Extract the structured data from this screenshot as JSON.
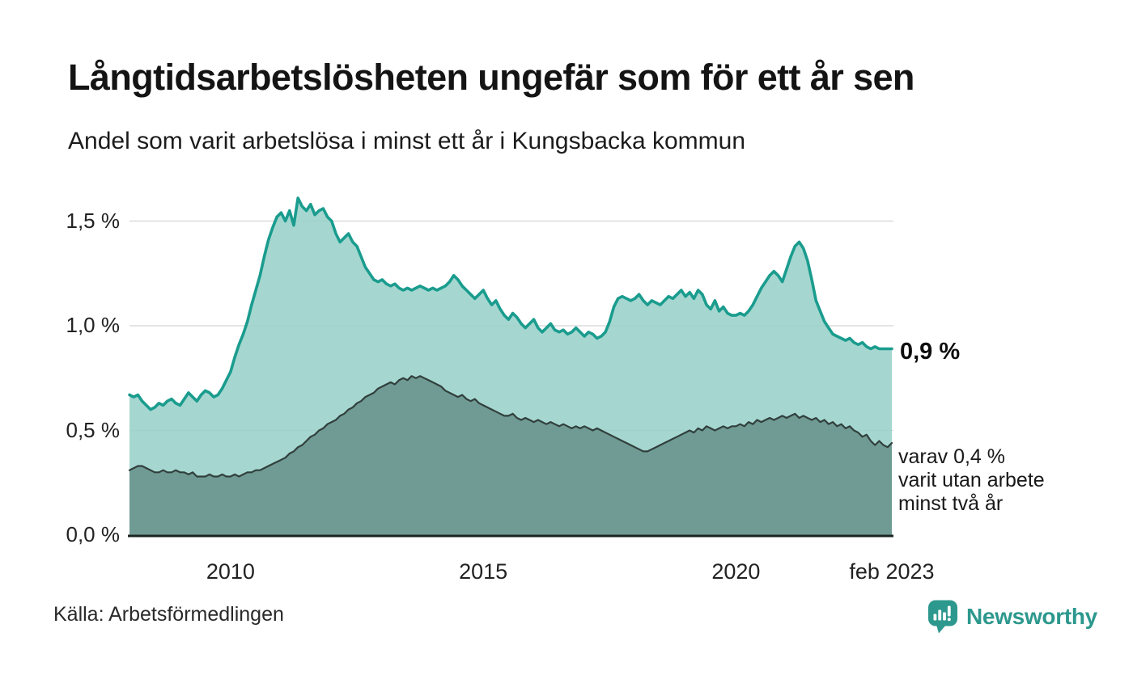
{
  "header": {
    "title": "Långtidsarbetslösheten ungefär som för ett år sen",
    "subtitle": "Andel som varit arbetslösa i minst ett år i Kungsbacka kommun"
  },
  "annotations": {
    "primary": "0,9 %",
    "secondary_line1": "varav 0,4 %",
    "secondary_line2": "varit utan arbete",
    "secondary_line3": "minst två år"
  },
  "footer": {
    "source": "Källa: Arbetsförmedlingen"
  },
  "logo": {
    "label": "Newsworthy",
    "color": "#2d988d",
    "icon": "bar-chart-speech-bubble"
  },
  "colors": {
    "line_total": "#1a9c8e",
    "fill_total": "#98d1ca",
    "line_two_years": "#313f3c",
    "fill_two_years": "#6c9892",
    "gridline": "#dbdbdb",
    "axis": "#1b2422"
  },
  "chart_data": {
    "type": "area",
    "title": "Långtidsarbetslösheten ungefär som för ett år sen",
    "subtitle": "Andel som varit arbetslösa i minst ett år i Kungsbacka kommun",
    "xlabel": "",
    "ylabel": "",
    "unit": "%",
    "grid": true,
    "x_start_year": 2008.0,
    "x_step_years": 0.0833333,
    "ylim": [
      0,
      1.65
    ],
    "x_ticks": [
      {
        "year": 2010,
        "label": "2010"
      },
      {
        "year": 2015,
        "label": "2015"
      },
      {
        "year": 2020,
        "label": "2020"
      },
      {
        "year": 2023.083,
        "label": "feb 2023"
      }
    ],
    "y_ticks": [
      {
        "value": 0,
        "label": "0,0 %"
      },
      {
        "value": 0.5,
        "label": "0,5 %"
      },
      {
        "value": 1.0,
        "label": "1,0 %"
      },
      {
        "value": 1.5,
        "label": "1,5 %"
      }
    ],
    "series": [
      {
        "id": "arbetslosa-minst-ett-ar",
        "latest_value_label": "0,9 %",
        "line_color": "#1a9c8e",
        "fill_color": "#98d1ca",
        "line_width": 3.6,
        "fill_opacity": 0.88,
        "values": [
          0.67,
          0.66,
          0.67,
          0.64,
          0.62,
          0.6,
          0.61,
          0.63,
          0.62,
          0.64,
          0.65,
          0.63,
          0.62,
          0.65,
          0.68,
          0.66,
          0.64,
          0.67,
          0.69,
          0.68,
          0.66,
          0.67,
          0.7,
          0.74,
          0.78,
          0.85,
          0.91,
          0.96,
          1.02,
          1.1,
          1.17,
          1.24,
          1.33,
          1.41,
          1.47,
          1.52,
          1.54,
          1.5,
          1.55,
          1.48,
          1.61,
          1.57,
          1.55,
          1.58,
          1.53,
          1.55,
          1.56,
          1.52,
          1.5,
          1.44,
          1.4,
          1.42,
          1.44,
          1.4,
          1.38,
          1.33,
          1.28,
          1.25,
          1.22,
          1.21,
          1.22,
          1.2,
          1.19,
          1.2,
          1.18,
          1.17,
          1.18,
          1.17,
          1.18,
          1.19,
          1.18,
          1.17,
          1.18,
          1.17,
          1.18,
          1.19,
          1.21,
          1.24,
          1.22,
          1.19,
          1.17,
          1.15,
          1.13,
          1.15,
          1.17,
          1.13,
          1.1,
          1.12,
          1.08,
          1.05,
          1.03,
          1.06,
          1.04,
          1.01,
          0.99,
          1.01,
          1.03,
          0.99,
          0.97,
          0.99,
          1.01,
          0.98,
          0.97,
          0.98,
          0.96,
          0.97,
          0.99,
          0.97,
          0.95,
          0.97,
          0.96,
          0.94,
          0.95,
          0.97,
          1.02,
          1.09,
          1.13,
          1.14,
          1.13,
          1.12,
          1.13,
          1.15,
          1.12,
          1.1,
          1.12,
          1.11,
          1.1,
          1.12,
          1.14,
          1.13,
          1.15,
          1.17,
          1.14,
          1.16,
          1.13,
          1.17,
          1.15,
          1.1,
          1.08,
          1.12,
          1.07,
          1.09,
          1.06,
          1.05,
          1.05,
          1.06,
          1.05,
          1.07,
          1.1,
          1.14,
          1.18,
          1.21,
          1.24,
          1.26,
          1.24,
          1.21,
          1.27,
          1.33,
          1.38,
          1.4,
          1.37,
          1.31,
          1.22,
          1.12,
          1.07,
          1.02,
          0.99,
          0.96,
          0.95,
          0.94,
          0.93,
          0.94,
          0.92,
          0.91,
          0.92,
          0.9,
          0.89,
          0.9,
          0.89,
          0.89,
          0.89,
          0.89
        ]
      },
      {
        "id": "arbetslosa-minst-tva-ar",
        "latest_value_label": "varav 0,4 %",
        "line_color": "#313f3c",
        "fill_color": "#6c9892",
        "line_width": 2.2,
        "fill_opacity": 0.96,
        "values": [
          0.31,
          0.32,
          0.33,
          0.33,
          0.32,
          0.31,
          0.3,
          0.3,
          0.31,
          0.3,
          0.3,
          0.31,
          0.3,
          0.3,
          0.29,
          0.3,
          0.28,
          0.28,
          0.28,
          0.29,
          0.28,
          0.28,
          0.29,
          0.28,
          0.28,
          0.29,
          0.28,
          0.29,
          0.3,
          0.3,
          0.31,
          0.31,
          0.32,
          0.33,
          0.34,
          0.35,
          0.36,
          0.37,
          0.39,
          0.4,
          0.42,
          0.43,
          0.45,
          0.47,
          0.48,
          0.5,
          0.51,
          0.53,
          0.54,
          0.55,
          0.57,
          0.58,
          0.6,
          0.61,
          0.63,
          0.64,
          0.66,
          0.67,
          0.68,
          0.7,
          0.71,
          0.72,
          0.73,
          0.72,
          0.74,
          0.75,
          0.74,
          0.76,
          0.75,
          0.76,
          0.75,
          0.74,
          0.73,
          0.72,
          0.71,
          0.69,
          0.68,
          0.67,
          0.66,
          0.67,
          0.65,
          0.64,
          0.65,
          0.63,
          0.62,
          0.61,
          0.6,
          0.59,
          0.58,
          0.57,
          0.57,
          0.58,
          0.56,
          0.55,
          0.56,
          0.55,
          0.54,
          0.55,
          0.54,
          0.53,
          0.54,
          0.53,
          0.52,
          0.53,
          0.52,
          0.51,
          0.52,
          0.51,
          0.52,
          0.51,
          0.5,
          0.51,
          0.5,
          0.49,
          0.48,
          0.47,
          0.46,
          0.45,
          0.44,
          0.43,
          0.42,
          0.41,
          0.4,
          0.4,
          0.41,
          0.42,
          0.43,
          0.44,
          0.45,
          0.46,
          0.47,
          0.48,
          0.49,
          0.5,
          0.49,
          0.51,
          0.5,
          0.52,
          0.51,
          0.5,
          0.51,
          0.52,
          0.51,
          0.52,
          0.52,
          0.53,
          0.52,
          0.54,
          0.53,
          0.55,
          0.54,
          0.55,
          0.56,
          0.55,
          0.56,
          0.57,
          0.56,
          0.57,
          0.58,
          0.56,
          0.57,
          0.56,
          0.55,
          0.56,
          0.54,
          0.55,
          0.53,
          0.54,
          0.52,
          0.53,
          0.51,
          0.52,
          0.5,
          0.49,
          0.47,
          0.48,
          0.45,
          0.43,
          0.45,
          0.43,
          0.42,
          0.44
        ]
      }
    ]
  }
}
